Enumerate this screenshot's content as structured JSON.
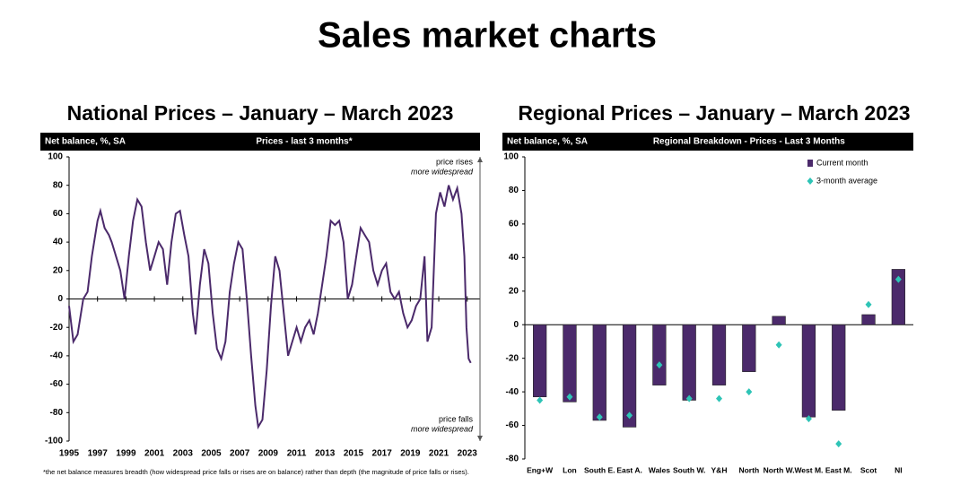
{
  "title": "Sales market charts",
  "chart_data": [
    {
      "type": "line",
      "title": "National Prices – January – March 2023",
      "ylabel": "Net balance, %, SA",
      "subtitle": "Prices - last 3 months*",
      "annotations": [
        "price rises",
        "more widespread",
        "price falls",
        "more widespread"
      ],
      "note": "*the net balance measures breadth (how widespread price falls or rises are on balance)  rather than depth (the magnitude of price falls or rises).",
      "color": "#4b2a6b",
      "x": [
        1995.0,
        1995.3,
        1995.6,
        1996.0,
        1996.3,
        1996.6,
        1997.0,
        1997.2,
        1997.5,
        1997.8,
        1998.0,
        1998.3,
        1998.6,
        1998.9,
        1999.2,
        1999.5,
        1999.8,
        2000.1,
        2000.4,
        2000.7,
        2001.0,
        2001.3,
        2001.6,
        2001.9,
        2002.2,
        2002.5,
        2002.8,
        2003.1,
        2003.4,
        2003.7,
        2003.9,
        2004.2,
        2004.5,
        2004.8,
        2005.1,
        2005.4,
        2005.7,
        2006.0,
        2006.3,
        2006.6,
        2006.9,
        2007.2,
        2007.5,
        2007.8,
        2008.1,
        2008.3,
        2008.6,
        2008.9,
        2009.2,
        2009.5,
        2009.8,
        2010.1,
        2010.4,
        2010.7,
        2011.0,
        2011.3,
        2011.6,
        2011.9,
        2012.2,
        2012.5,
        2012.8,
        2013.1,
        2013.4,
        2013.7,
        2014.0,
        2014.3,
        2014.6,
        2014.9,
        2015.2,
        2015.5,
        2015.8,
        2016.1,
        2016.4,
        2016.7,
        2017.0,
        2017.3,
        2017.6,
        2017.9,
        2018.2,
        2018.5,
        2018.8,
        2019.1,
        2019.4,
        2019.7,
        2020.0,
        2020.2,
        2020.5,
        2020.8,
        2021.1,
        2021.4,
        2021.7,
        2022.0,
        2022.3,
        2022.6,
        2022.8,
        2022.95,
        2023.1,
        2023.25
      ],
      "values": [
        -5,
        -30,
        -25,
        0,
        5,
        30,
        55,
        62,
        50,
        45,
        40,
        30,
        20,
        0,
        30,
        55,
        70,
        65,
        40,
        20,
        30,
        40,
        35,
        10,
        40,
        60,
        62,
        45,
        30,
        -10,
        -25,
        10,
        35,
        25,
        -10,
        -35,
        -42,
        -30,
        5,
        25,
        40,
        35,
        0,
        -40,
        -75,
        -90,
        -85,
        -50,
        -5,
        30,
        20,
        -10,
        -40,
        -30,
        -20,
        -30,
        -20,
        -15,
        -25,
        -10,
        10,
        30,
        55,
        52,
        55,
        40,
        0,
        10,
        30,
        50,
        45,
        40,
        20,
        10,
        20,
        25,
        5,
        0,
        5,
        -10,
        -20,
        -15,
        -5,
        0,
        30,
        -30,
        -20,
        60,
        75,
        65,
        80,
        70,
        78,
        60,
        30,
        -20,
        -42,
        -45
      ],
      "xlim": [
        1995,
        2023.9
      ],
      "xticks": [
        1995,
        1997,
        1999,
        2001,
        2003,
        2005,
        2007,
        2009,
        2011,
        2013,
        2015,
        2017,
        2019,
        2021,
        2023
      ],
      "ylim": [
        -100,
        100
      ],
      "yticks": [
        -100,
        -80,
        -60,
        -40,
        -20,
        0,
        20,
        40,
        60,
        80,
        100
      ]
    },
    {
      "type": "bar",
      "title": "Regional Prices – January – March 2023",
      "ylabel": "Net balance, %, SA",
      "subtitle": "Regional Breakdown - Prices - Last 3 Months",
      "categories": [
        "Eng+W",
        "Lon",
        "South E.",
        "East A.",
        "Wales",
        "South W.",
        "Y&H",
        "North",
        "North W.",
        "West M.",
        "East M.",
        "Scot",
        "NI"
      ],
      "series": [
        {
          "name": "Current month",
          "color": "#4b2a6b",
          "values": [
            -43,
            -46,
            -57,
            -61,
            -36,
            -45,
            -36,
            -28,
            5,
            -55,
            -51,
            6,
            33
          ]
        },
        {
          "name": "3-month average",
          "color": "#2ec4b6",
          "type": "scatter",
          "values": [
            -45,
            -43,
            -55,
            -54,
            -24,
            -44,
            -44,
            -40,
            -12,
            -56,
            -71,
            12,
            27
          ]
        }
      ],
      "legend": "upper right",
      "ylim": [
        -80,
        100
      ],
      "yticks": [
        -80,
        -60,
        -40,
        -20,
        0,
        20,
        40,
        60,
        80,
        100
      ]
    }
  ]
}
